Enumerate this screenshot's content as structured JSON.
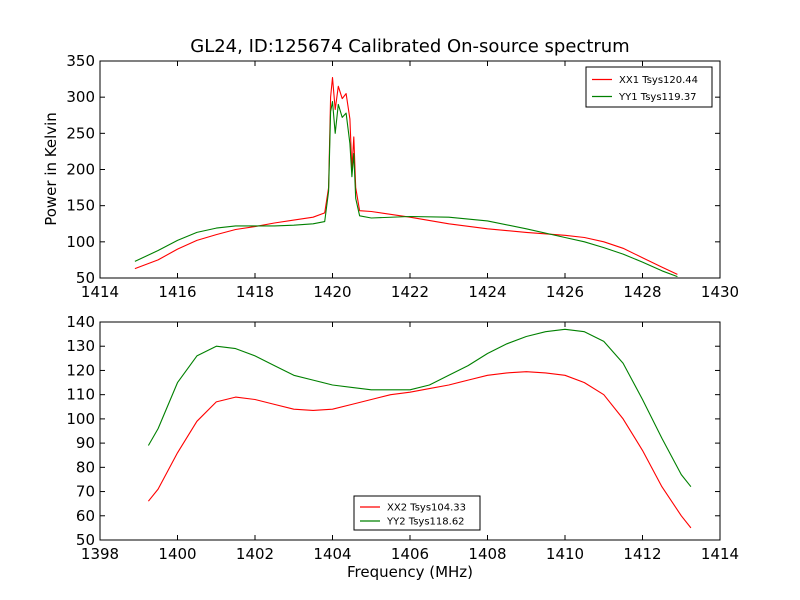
{
  "chart_data": [
    {
      "type": "line",
      "title": "GL24, ID:125674 Calibrated On-source spectrum",
      "xlabel": "",
      "ylabel": "Power in Kelvin",
      "xlim": [
        1414,
        1430
      ],
      "ylim": [
        50,
        350
      ],
      "xticks": [
        "1414",
        "1416",
        "1418",
        "1420",
        "1422",
        "1424",
        "1426",
        "1428",
        "1430"
      ],
      "yticks": [
        "50",
        "100",
        "150",
        "200",
        "250",
        "300",
        "350"
      ],
      "legend_position": "top-right",
      "series": [
        {
          "name": "XX1 Tsys120.44",
          "color": "#ff0000",
          "points": [
            [
              1414.9,
              63
            ],
            [
              1415.5,
              75
            ],
            [
              1416,
              90
            ],
            [
              1416.5,
              102
            ],
            [
              1417,
              110
            ],
            [
              1417.5,
              117
            ],
            [
              1418,
              121
            ],
            [
              1418.5,
              126
            ],
            [
              1419,
              130
            ],
            [
              1419.5,
              134
            ],
            [
              1419.8,
              140
            ],
            [
              1419.9,
              175
            ],
            [
              1419.95,
              300
            ],
            [
              1420.0,
              327
            ],
            [
              1420.07,
              283
            ],
            [
              1420.15,
              315
            ],
            [
              1420.25,
              298
            ],
            [
              1420.35,
              305
            ],
            [
              1420.45,
              270
            ],
            [
              1420.5,
              200
            ],
            [
              1420.55,
              245
            ],
            [
              1420.6,
              175
            ],
            [
              1420.7,
              143
            ],
            [
              1421,
              142
            ],
            [
              1422,
              134
            ],
            [
              1423,
              125
            ],
            [
              1424,
              118
            ],
            [
              1425,
              113
            ],
            [
              1426,
              109
            ],
            [
              1426.5,
              106
            ],
            [
              1427,
              100
            ],
            [
              1427.5,
              91
            ],
            [
              1428,
              78
            ],
            [
              1428.5,
              65
            ],
            [
              1428.9,
              55
            ]
          ]
        },
        {
          "name": "YY1 Tsys119.37",
          "color": "#008000",
          "points": [
            [
              1414.9,
              73
            ],
            [
              1415.5,
              88
            ],
            [
              1416,
              102
            ],
            [
              1416.5,
              113
            ],
            [
              1417,
              119
            ],
            [
              1417.5,
              122
            ],
            [
              1418,
              122
            ],
            [
              1418.5,
              122
            ],
            [
              1419,
              123
            ],
            [
              1419.5,
              125
            ],
            [
              1419.8,
              128
            ],
            [
              1419.9,
              170
            ],
            [
              1419.95,
              280
            ],
            [
              1420.0,
              294
            ],
            [
              1420.07,
              250
            ],
            [
              1420.15,
              290
            ],
            [
              1420.25,
              272
            ],
            [
              1420.35,
              278
            ],
            [
              1420.45,
              236
            ],
            [
              1420.5,
              190
            ],
            [
              1420.55,
              222
            ],
            [
              1420.6,
              160
            ],
            [
              1420.7,
              136
            ],
            [
              1421,
              133
            ],
            [
              1422,
              135
            ],
            [
              1423,
              134
            ],
            [
              1424,
              129
            ],
            [
              1425,
              118
            ],
            [
              1426,
              106
            ],
            [
              1426.5,
              100
            ],
            [
              1427,
              92
            ],
            [
              1427.5,
              83
            ],
            [
              1428,
              72
            ],
            [
              1428.5,
              60
            ],
            [
              1428.9,
              52
            ]
          ]
        }
      ]
    },
    {
      "type": "line",
      "title": "",
      "xlabel": "Frequency (MHz)",
      "ylabel": "",
      "xlim": [
        1398,
        1414
      ],
      "ylim": [
        50,
        140
      ],
      "xticks": [
        "1398",
        "1400",
        "1402",
        "1404",
        "1406",
        "1408",
        "1410",
        "1412",
        "1414"
      ],
      "yticks": [
        "50",
        "60",
        "70",
        "80",
        "90",
        "100",
        "110",
        "120",
        "130",
        "140"
      ],
      "legend_position": "lower-center",
      "series": [
        {
          "name": "XX2 Tsys104.33",
          "color": "#ff0000",
          "points": [
            [
              1399.25,
              66
            ],
            [
              1399.5,
              71
            ],
            [
              1400,
              86
            ],
            [
              1400.5,
              99
            ],
            [
              1401,
              107
            ],
            [
              1401.5,
              109
            ],
            [
              1402,
              108
            ],
            [
              1402.5,
              106
            ],
            [
              1403,
              104
            ],
            [
              1403.5,
              103.5
            ],
            [
              1404,
              104
            ],
            [
              1404.5,
              106
            ],
            [
              1405,
              108
            ],
            [
              1405.5,
              110
            ],
            [
              1406,
              111
            ],
            [
              1406.5,
              112.5
            ],
            [
              1407,
              114
            ],
            [
              1407.5,
              116
            ],
            [
              1408,
              118
            ],
            [
              1408.5,
              119
            ],
            [
              1409,
              119.5
            ],
            [
              1409.5,
              119
            ],
            [
              1410,
              118
            ],
            [
              1410.5,
              115
            ],
            [
              1411,
              110
            ],
            [
              1411.5,
              100
            ],
            [
              1412,
              87
            ],
            [
              1412.5,
              72
            ],
            [
              1413,
              60
            ],
            [
              1413.25,
              55
            ]
          ]
        },
        {
          "name": "YY2 Tsys118.62",
          "color": "#008000",
          "points": [
            [
              1399.25,
              89
            ],
            [
              1399.5,
              96
            ],
            [
              1400,
              115
            ],
            [
              1400.5,
              126
            ],
            [
              1401,
              130
            ],
            [
              1401.5,
              129
            ],
            [
              1402,
              126
            ],
            [
              1402.5,
              122
            ],
            [
              1403,
              118
            ],
            [
              1403.5,
              116
            ],
            [
              1404,
              114
            ],
            [
              1404.5,
              113
            ],
            [
              1405,
              112
            ],
            [
              1405.5,
              112
            ],
            [
              1406,
              112
            ],
            [
              1406.5,
              114
            ],
            [
              1407,
              118
            ],
            [
              1407.5,
              122
            ],
            [
              1408,
              127
            ],
            [
              1408.5,
              131
            ],
            [
              1409,
              134
            ],
            [
              1409.5,
              136
            ],
            [
              1410,
              137
            ],
            [
              1410.5,
              136
            ],
            [
              1411,
              132
            ],
            [
              1411.5,
              123
            ],
            [
              1412,
              108
            ],
            [
              1412.5,
              92
            ],
            [
              1413,
              77
            ],
            [
              1413.25,
              72
            ]
          ]
        }
      ]
    }
  ]
}
